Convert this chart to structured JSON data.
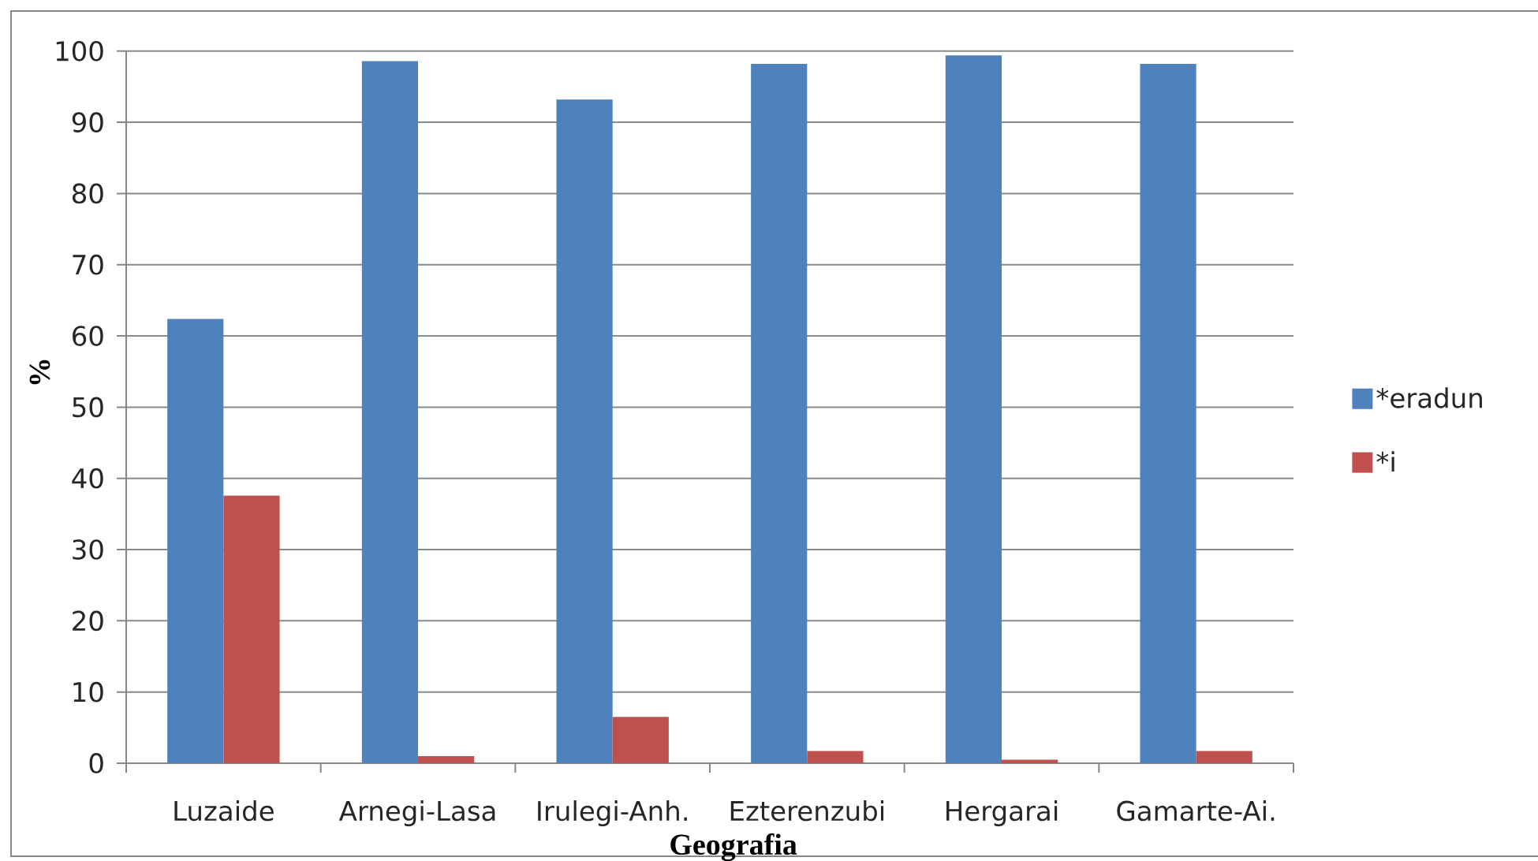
{
  "chart_data": {
    "type": "bar",
    "xlabel": "Geografia",
    "ylabel": "%",
    "categories": [
      "Luzaide",
      "Arnegi-Lasa",
      "Irulegi-Anh.",
      "Ezterenzubi",
      "Hergarai",
      "Gamarte-Ai."
    ],
    "series": [
      {
        "name": "*eradun",
        "color": "#4f81bd",
        "values": [
          62.4,
          98.6,
          93.2,
          98.2,
          99.4,
          98.2
        ]
      },
      {
        "name": "*i",
        "color": "#c0504d",
        "values": [
          37.6,
          1.0,
          6.5,
          1.7,
          0.5,
          1.7
        ]
      }
    ],
    "ylim": [
      0,
      100
    ],
    "yticks": [
      0,
      10,
      20,
      30,
      40,
      50,
      60,
      70,
      80,
      90,
      100
    ],
    "grid": "y",
    "legend": "right"
  }
}
